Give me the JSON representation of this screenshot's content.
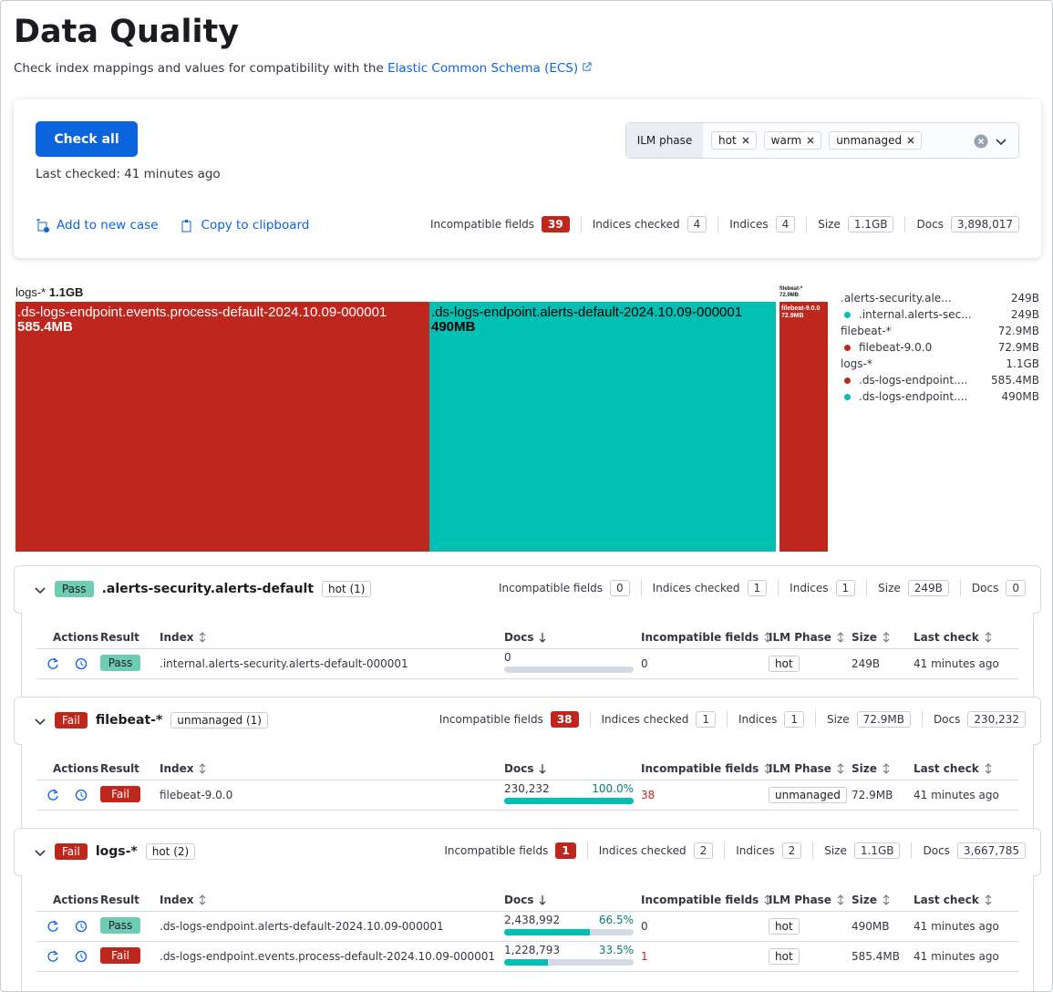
{
  "header": {
    "title": "Data Quality",
    "subtitle": "Check index mappings and values for compatibility with the",
    "link": "Elastic Common Schema (ECS)"
  },
  "panel": {
    "check_all": "Check all",
    "last_checked": "Last checked: 41 minutes ago",
    "ilm_label": "ILM phase",
    "ilm_options": [
      "hot",
      "warm",
      "unmanaged"
    ],
    "actions": [
      "Add to new case",
      "Copy to clipboard"
    ],
    "stats": [
      {
        "label": "Incompatible fields",
        "value": 39
      },
      {
        "label": "Indices checked",
        "value": 4
      },
      {
        "label": "Indices",
        "value": 4
      },
      {
        "label": "Size",
        "value": "1.1GB"
      },
      {
        "label": "Docs",
        "value": "3,898,017"
      }
    ]
  },
  "treemap": {
    "title": "logs-*",
    "size": "1.1GB",
    "cells": [
      {
        "label": ".ds-logs-endpoint.events.process-default-2024.10.09-000001",
        "size": "585.4MB",
        "color": "#bd271e"
      },
      {
        "label": ".ds-logs-endpoint.alerts-default-2024.10.09-000001",
        "size": "490MB",
        "color": "#00bfb3"
      },
      {
        "group": "filebeat-*",
        "group_size": "72.9MB",
        "label": "filebeat-9.0.0",
        "size": "72.9MB",
        "color": "#bd271e"
      }
    ],
    "legend": [
      {
        "name": ".alerts-security.ale...",
        "size": "249B",
        "items": [
          {
            "name": ".internal.alerts-sec...",
            "size": "249B",
            "color": "#00bfb3"
          }
        ]
      },
      {
        "name": "filebeat-*",
        "size": "72.9MB",
        "items": [
          {
            "name": "filebeat-9.0.0",
            "size": "72.9MB",
            "color": "#bd271e"
          }
        ]
      },
      {
        "name": "logs-*",
        "size": "1.1GB",
        "items": [
          {
            "name": ".ds-logs-endpoint....",
            "size": "585.4MB",
            "color": "#bd271e"
          },
          {
            "name": ".ds-logs-endpoint....",
            "size": "490MB",
            "color": "#00bfb3"
          }
        ]
      }
    ]
  },
  "table_headers": [
    "Actions",
    "Result",
    "Index",
    "Docs",
    "Incompatible fields",
    "ILM Phase",
    "Size",
    "Last check"
  ],
  "groups": [
    {
      "result": "Pass",
      "name": ".alerts-security.alerts-default",
      "ilm": "hot (1)",
      "stats": [
        {
          "label": "Incompatible fields",
          "value": 0
        },
        {
          "label": "Indices checked",
          "value": 1
        },
        {
          "label": "Indices",
          "value": 1
        },
        {
          "label": "Size",
          "value": "249B"
        },
        {
          "label": "Docs",
          "value": 0
        }
      ],
      "rows": [
        {
          "result": "Pass",
          "index": ".internal.alerts-security.alerts-default-000001",
          "docs": "0",
          "incompatible": 0,
          "ilm": "hot",
          "size": "249B",
          "last_check": "41 minutes ago"
        }
      ]
    },
    {
      "result": "Fail",
      "name": "filebeat-*",
      "ilm": "unmanaged (1)",
      "stats": [
        {
          "label": "Incompatible fields",
          "value": 38
        },
        {
          "label": "Indices checked",
          "value": 1
        },
        {
          "label": "Indices",
          "value": 1
        },
        {
          "label": "Size",
          "value": "72.9MB"
        },
        {
          "label": "Docs",
          "value": "230,232"
        }
      ],
      "rows": [
        {
          "result": "Fail",
          "index": "filebeat-9.0.0",
          "docs": "230,232",
          "share": 100,
          "share_label": "100.0%",
          "incompatible": 38,
          "ilm": "unmanaged",
          "size": "72.9MB",
          "last_check": "41 minutes ago"
        }
      ]
    },
    {
      "result": "Fail",
      "name": "logs-*",
      "ilm": "hot (2)",
      "stats": [
        {
          "label": "Incompatible fields",
          "value": 1
        },
        {
          "label": "Indices checked",
          "value": 2
        },
        {
          "label": "Indices",
          "value": 2
        },
        {
          "label": "Size",
          "value": "1.1GB"
        },
        {
          "label": "Docs",
          "value": "3,667,785"
        }
      ],
      "rows": [
        {
          "result": "Pass",
          "index": ".ds-logs-endpoint.alerts-default-2024.10.09-000001",
          "docs": "2,438,992",
          "share": 66.5,
          "share_label": "66.5%",
          "incompatible": 0,
          "ilm": "hot",
          "size": "490MB",
          "last_check": "41 minutes ago"
        },
        {
          "result": "Fail",
          "index": ".ds-logs-endpoint.events.process-default-2024.10.09-000001",
          "docs": "1,228,793",
          "share": 33.5,
          "share_label": "33.5%",
          "incompatible": 1,
          "ilm": "hot",
          "size": "585.4MB",
          "last_check": "41 minutes ago"
        }
      ]
    }
  ]
}
